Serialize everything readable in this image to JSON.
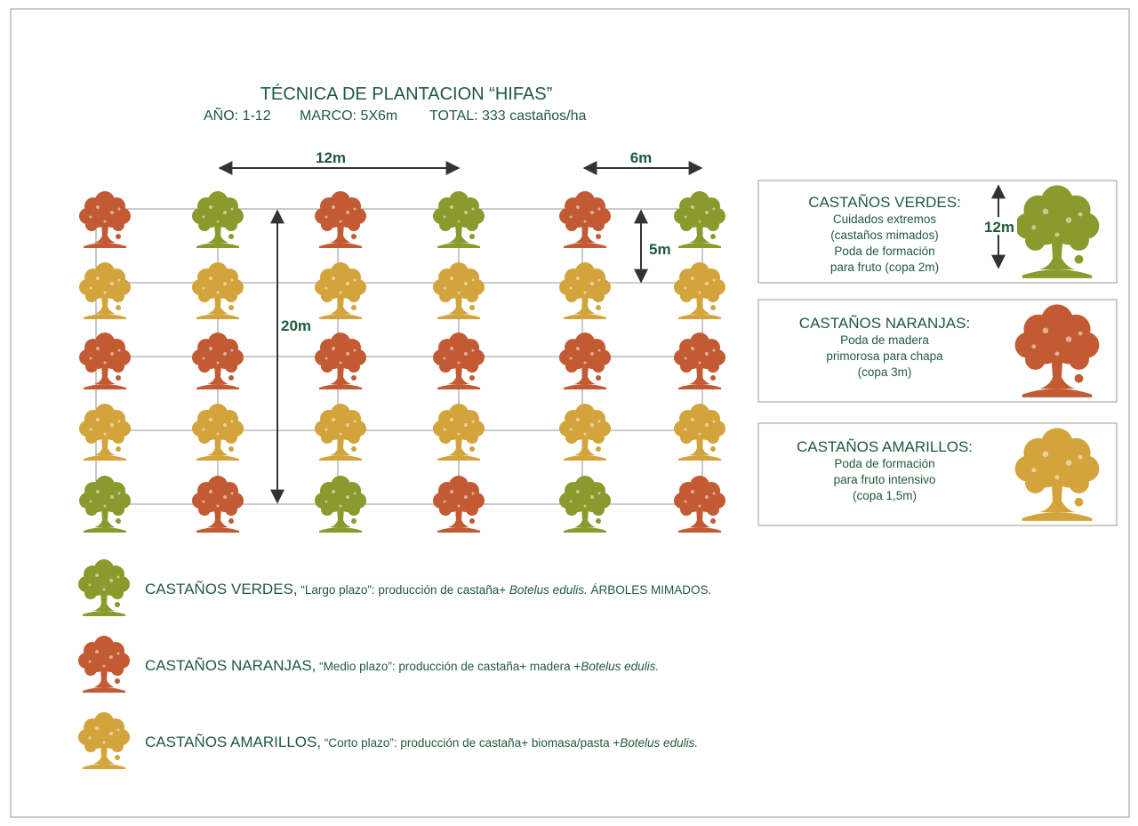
{
  "header": {
    "title": "TÉCNICA DE PLANTACION “HIFAS”",
    "year": "AÑO: 1-12",
    "frame": "MARCO: 5X6m",
    "total": "TOTAL: 333 castaños/ha"
  },
  "dimensions": {
    "width_a": "12m",
    "width_b": "6m",
    "height_a": "5m",
    "height_b": "20m"
  },
  "tree_grid": [
    [
      "#c25a33",
      "#8a9a2c",
      "#c25a33",
      "#8a9a2c",
      "#c25a33",
      "#8a9a2c"
    ],
    [
      "#d4a43c",
      "#d4a43c",
      "#d4a43c",
      "#d4a43c",
      "#d4a43c",
      "#d4a43c"
    ],
    [
      "#c25a33",
      "#c25a33",
      "#c25a33",
      "#c25a33",
      "#c25a33",
      "#c25a33"
    ],
    [
      "#d4a43c",
      "#d4a43c",
      "#d4a43c",
      "#d4a43c",
      "#d4a43c",
      "#d4a43c"
    ],
    [
      "#8a9a2c",
      "#c25a33",
      "#8a9a2c",
      "#c25a33",
      "#8a9a2c",
      "#c25a33"
    ]
  ],
  "cards": [
    {
      "title": "CASTAÑOS VERDES:",
      "lines": [
        "Cuidados extremos",
        "(castaños mimados)",
        "Poda de formación",
        "para fruto (copa 2m)"
      ],
      "dimension": "12m",
      "color": "#8a9a2c"
    },
    {
      "title": "CASTAÑOS NARANJAS:",
      "lines": [
        "Poda de madera",
        "primorosa para chapa",
        "(copa 3m)"
      ],
      "color": "#c25a33"
    },
    {
      "title": "CASTAÑOS AMARILLOS:",
      "lines": [
        "Poda de formación",
        "para fruto intensivo",
        "(copa 1,5m)"
      ],
      "color": "#d4a43c"
    }
  ],
  "legend": [
    {
      "title": "CASTAÑOS VERDES,",
      "lead": " “Largo plazo”: producción de castaña+ ",
      "italic": "Botelus edulis.",
      "tail": " ÁRBOLES MIMADOS.",
      "color": "#8a9a2c"
    },
    {
      "title": "CASTAÑOS NARANJAS,",
      "lead": " “Medio plazo”: producción de castaña+ madera +",
      "italic": "Botelus edulis.",
      "color": "#c25a33"
    },
    {
      "title": "CASTAÑOS AMARILLOS,",
      "lead": " “Corto plazo”: producción de castaña+ biomasa/pasta +",
      "italic": "Botelus edulis.",
      "color": "#d4a43c"
    }
  ]
}
